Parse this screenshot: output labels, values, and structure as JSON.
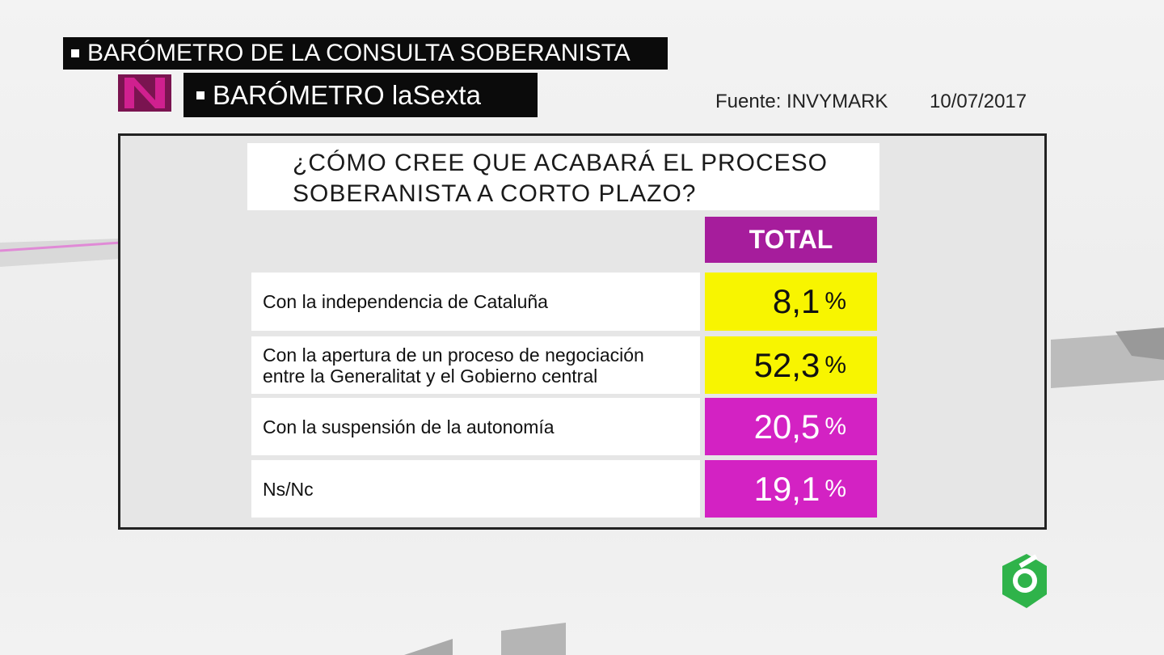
{
  "header": {
    "topic": "BARÓMETRO DE LA CONSULTA SOBERANISTA",
    "program": "BARÓMETRO laSexta",
    "source": "Fuente: INVYMARK",
    "date": "10/07/2017"
  },
  "question": {
    "lines": [
      "¿CÓMO CREE QUE ACABARÁ EL PROCESO",
      "SOBERANISTA A CORTO PLAZO?"
    ]
  },
  "table": {
    "column_header": "TOTAL",
    "header_color": "#a61d9c",
    "rows": [
      {
        "label": "Con la independencia de Cataluña",
        "value": "8,1",
        "unit": "%",
        "color": "#f8f500"
      },
      {
        "label": "Con la apertura de un proceso de negociación entre la Generalitat y el Gobierno central",
        "value": "52,3",
        "unit": "%",
        "color": "#f8f500"
      },
      {
        "label": "Con la suspensión de la autonomía",
        "value": "20,5",
        "unit": "%",
        "color": "#d322c3"
      },
      {
        "label": "Ns/Nc",
        "value": "19,1",
        "unit": "%",
        "color": "#d322c3"
      }
    ]
  }
}
